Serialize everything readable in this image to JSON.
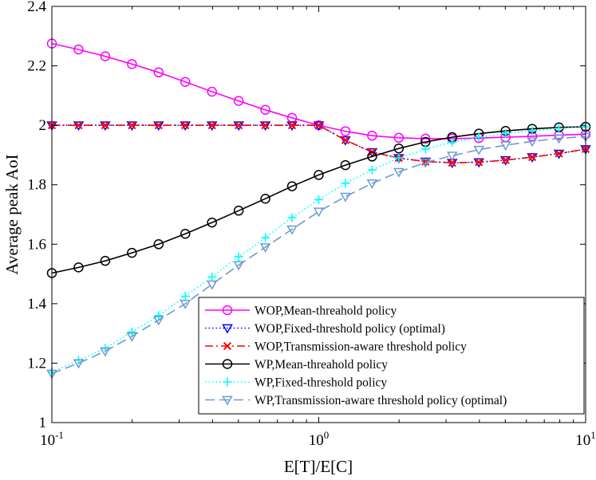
{
  "chart_data": {
    "type": "line",
    "title": "",
    "xlabel": "E[T]/E[C]",
    "ylabel": "Average peak AoI",
    "xscale": "log",
    "xlim": [
      0.1,
      10
    ],
    "ylim": [
      1,
      2.4
    ],
    "x_ticks": [
      0.1,
      1,
      10
    ],
    "x_tick_labels": [
      {
        "base": "10",
        "exp": "-1"
      },
      {
        "base": "10",
        "exp": "0"
      },
      {
        "base": "10",
        "exp": "1"
      }
    ],
    "y_ticks": [
      1,
      1.2,
      1.4,
      1.6,
      1.8,
      2,
      2.2,
      2.4
    ],
    "y_tick_labels": [
      "1",
      "1.2",
      "1.4",
      "1.6",
      "1.8",
      "2",
      "2.2",
      "2.4"
    ],
    "grid": false,
    "legend_position": "bottom-right",
    "x": [
      0.1,
      0.1259,
      0.1585,
      0.1995,
      0.2512,
      0.3162,
      0.3981,
      0.5012,
      0.631,
      0.7943,
      1.0,
      1.2589,
      1.5849,
      1.9953,
      2.5119,
      3.1623,
      3.9811,
      5.0119,
      6.3096,
      7.9433,
      10.0
    ],
    "series": [
      {
        "name": "WOP,Mean-threahold policy",
        "color": "#ff00ff",
        "line_style": "solid",
        "marker": "circle",
        "values": [
          2.275,
          2.255,
          2.232,
          2.206,
          2.178,
          2.146,
          2.113,
          2.082,
          2.052,
          2.025,
          2.0,
          1.98,
          1.965,
          1.958,
          1.955,
          1.955,
          1.957,
          1.96,
          1.963,
          1.967,
          1.97
        ]
      },
      {
        "name": "WOP,Fixed-threshold policy (optimal)",
        "color": "#0000ff",
        "line_style": "dotted",
        "marker": "triangle-down",
        "values": [
          2.0,
          2.0,
          2.0,
          2.0,
          2.0,
          2.0,
          2.0,
          2.0,
          2.0,
          2.0,
          2.0,
          1.95,
          1.91,
          1.89,
          1.878,
          1.874,
          1.876,
          1.883,
          1.893,
          1.905,
          1.92
        ]
      },
      {
        "name": "WOP,Transmission-aware threshold policy",
        "color": "#ff0000",
        "line_style": "dashdot",
        "marker": "x",
        "values": [
          2.0,
          2.0,
          2.0,
          2.0,
          2.0,
          2.0,
          2.0,
          2.0,
          2.0,
          2.0,
          2.0,
          1.95,
          1.91,
          1.89,
          1.878,
          1.874,
          1.876,
          1.883,
          1.893,
          1.905,
          1.92
        ]
      },
      {
        "name": "WP,Mean-threahold policy",
        "color": "#000000",
        "line_style": "solid",
        "marker": "circle",
        "values": [
          1.503,
          1.522,
          1.544,
          1.571,
          1.6,
          1.635,
          1.673,
          1.713,
          1.753,
          1.795,
          1.833,
          1.866,
          1.895,
          1.922,
          1.944,
          1.96,
          1.972,
          1.981,
          1.988,
          1.993,
          1.995
        ]
      },
      {
        "name": "WP,Fixed-threshold policy",
        "color": "#00ffff",
        "line_style": "dotted",
        "marker": "plus",
        "values": [
          1.17,
          1.21,
          1.25,
          1.305,
          1.36,
          1.425,
          1.49,
          1.558,
          1.622,
          1.69,
          1.75,
          1.805,
          1.85,
          1.89,
          1.92,
          1.943,
          1.96,
          1.972,
          1.982,
          1.99,
          1.995
        ]
      },
      {
        "name": "WP,Transmission-aware threshold policy (optimal)",
        "color": "#6c9bd2",
        "line_style": "dashed",
        "marker": "triangle-down",
        "values": [
          1.165,
          1.2,
          1.24,
          1.29,
          1.345,
          1.4,
          1.465,
          1.53,
          1.59,
          1.65,
          1.71,
          1.76,
          1.805,
          1.843,
          1.875,
          1.898,
          1.918,
          1.933,
          1.946,
          1.956,
          1.962
        ]
      }
    ]
  }
}
